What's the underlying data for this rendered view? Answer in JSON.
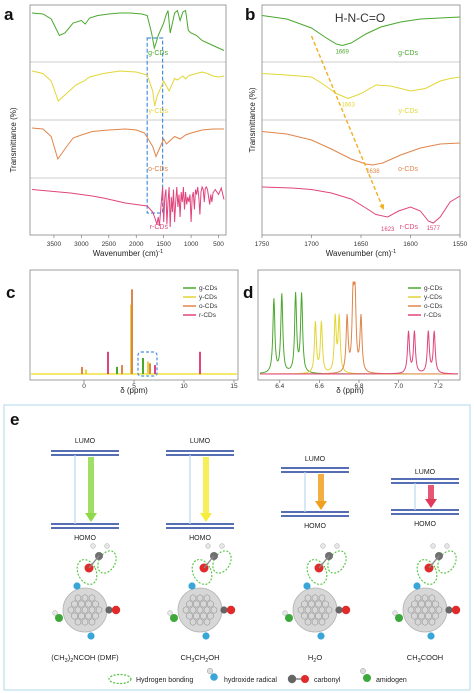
{
  "panel_labels": {
    "a": "a",
    "b": "b",
    "c": "c",
    "d": "d",
    "e": "e"
  },
  "colors": {
    "g": "#4aa82e",
    "y": "#e3d637",
    "o": "#e0854a",
    "r": "#e0457d",
    "highlight": "#4a90e2",
    "arrow": "#f0b020",
    "nmr_base": "#f2e23a"
  },
  "chart_data": [
    {
      "id": "a",
      "type": "line",
      "xlabel": "Wavenumber (cm)",
      "xlabel_sup": "-1",
      "ylabel": "Transmittance (%)",
      "xlim": [
        3900,
        400
      ],
      "xticks": [
        "3500",
        "3000",
        "2500",
        "2000",
        "1500",
        "1000",
        "500"
      ],
      "xtick_values": [
        3500,
        3000,
        2500,
        2000,
        1500,
        1000,
        500
      ],
      "highlight_range": [
        1800,
        1520
      ],
      "series": [
        {
          "name": "g-CDs",
          "color": "#4aa82e",
          "x": [
            3900,
            3700,
            3550,
            3400,
            3300,
            3150,
            3000,
            2930,
            2850,
            2700,
            2500,
            2300,
            2100,
            1900,
            1800,
            1720,
            1670,
            1640,
            1600,
            1560,
            1500,
            1460,
            1420,
            1380,
            1330,
            1300,
            1250,
            1200,
            1150,
            1100,
            1050,
            1000,
            900,
            800,
            700,
            600,
            500,
            400
          ],
          "y": [
            0.9,
            0.88,
            0.78,
            0.45,
            0.5,
            0.7,
            0.75,
            0.68,
            0.8,
            0.85,
            0.88,
            0.9,
            0.9,
            0.88,
            0.85,
            0.5,
            0.2,
            0.3,
            0.45,
            0.55,
            0.7,
            0.85,
            0.95,
            0.5,
            0.75,
            0.9,
            0.95,
            0.75,
            0.92,
            0.95,
            0.55,
            0.5,
            0.45,
            0.35,
            0.3,
            0.25,
            0.2,
            0.15
          ]
        },
        {
          "name": "y-CDs",
          "color": "#e3d637",
          "x": [
            3900,
            3700,
            3550,
            3420,
            3300,
            3100,
            2950,
            2850,
            2600,
            2300,
            2000,
            1800,
            1700,
            1663,
            1620,
            1560,
            1500,
            1450,
            1400,
            1380,
            1300,
            1250,
            1150,
            1100,
            1050,
            1000,
            900,
            800,
            700,
            600,
            500,
            400
          ],
          "y": [
            0.9,
            0.85,
            0.7,
            0.3,
            0.42,
            0.62,
            0.7,
            0.78,
            0.85,
            0.9,
            0.88,
            0.82,
            0.5,
            0.2,
            0.4,
            0.55,
            0.7,
            0.6,
            0.5,
            0.55,
            0.75,
            0.72,
            0.8,
            0.74,
            0.8,
            0.82,
            0.85,
            0.88,
            0.85,
            0.8,
            0.78,
            0.8
          ]
        },
        {
          "name": "o-CDs",
          "color": "#e0854a",
          "x": [
            3900,
            3700,
            3550,
            3430,
            3300,
            3150,
            3000,
            2800,
            2500,
            2200,
            2000,
            1850,
            1700,
            1640,
            1600,
            1560,
            1500,
            1450,
            1400,
            1300,
            1200,
            1100,
            1000,
            800,
            600,
            400
          ],
          "y": [
            0.92,
            0.9,
            0.75,
            0.3,
            0.5,
            0.72,
            0.78,
            0.85,
            0.88,
            0.9,
            0.88,
            0.82,
            0.55,
            0.35,
            0.45,
            0.55,
            0.7,
            0.6,
            0.65,
            0.75,
            0.7,
            0.78,
            0.82,
            0.88,
            0.9,
            0.9
          ]
        },
        {
          "name": "r-CDs",
          "color": "#e0457d",
          "x": [
            3900,
            3600,
            3400,
            3200,
            3000,
            2800,
            2600,
            2400,
            2200,
            2000,
            1800,
            1700,
            1650,
            1623,
            1600,
            1577,
            1550,
            1520,
            1500,
            1480,
            1460,
            1440,
            1420,
            1400,
            1380,
            1360,
            1340,
            1320,
            1300,
            1280,
            1260,
            1240,
            1220,
            1200,
            1180,
            1160,
            1140,
            1120,
            1100,
            1080,
            1060,
            1040,
            1020,
            1000,
            980,
            960,
            940,
            920,
            900,
            880,
            860,
            840,
            820,
            800,
            780,
            760,
            740,
            720,
            700,
            680,
            660,
            640,
            620,
            600,
            560,
            500,
            450,
            400
          ],
          "y": [
            0.85,
            0.82,
            0.8,
            0.78,
            0.75,
            0.72,
            0.68,
            0.63,
            0.58,
            0.55,
            0.52,
            0.4,
            0.25,
            0.15,
            0.3,
            0.12,
            0.5,
            0.9,
            0.2,
            0.7,
            0.85,
            0.15,
            0.6,
            0.9,
            0.1,
            0.7,
            0.4,
            0.85,
            0.2,
            0.6,
            0.9,
            0.5,
            0.75,
            0.3,
            0.8,
            0.6,
            0.9,
            0.45,
            0.8,
            0.55,
            0.7,
            0.6,
            0.75,
            0.2,
            0.7,
            0.8,
            0.45,
            0.85,
            0.75,
            0.9,
            0.7,
            0.35,
            0.8,
            0.9,
            0.85,
            0.6,
            0.88,
            0.9,
            0.85,
            0.7,
            0.55,
            0.75,
            0.6,
            0.78,
            0.85,
            0.75,
            0.88,
            0.65
          ]
        }
      ]
    },
    {
      "id": "b",
      "type": "line",
      "xlabel": "Wavenumber (cm)",
      "xlabel_sup": "-1",
      "ylabel": "Transmittance (%)",
      "xlim": [
        1750,
        1550
      ],
      "xticks": [
        "1750",
        "1700",
        "1650",
        "1600",
        "1550"
      ],
      "xtick_values": [
        1750,
        1700,
        1650,
        1600,
        1550
      ],
      "annotation": "H-N-C=O",
      "series": [
        {
          "name": "g-CDs",
          "color": "#4aa82e",
          "peak_label": "1669",
          "peak_x": 1669,
          "x": [
            1750,
            1725,
            1700,
            1685,
            1675,
            1669,
            1660,
            1645,
            1630,
            1610,
            1590,
            1570,
            1550
          ],
          "y": [
            0.85,
            0.78,
            0.6,
            0.4,
            0.28,
            0.25,
            0.3,
            0.48,
            0.62,
            0.72,
            0.78,
            0.8,
            0.82
          ]
        },
        {
          "name": "y-CDs",
          "color": "#e3d637",
          "peak_label": "1663",
          "peak_x": 1663,
          "x": [
            1750,
            1725,
            1700,
            1690,
            1675,
            1663,
            1650,
            1635,
            1620,
            1600,
            1585,
            1570,
            1560,
            1550
          ],
          "y": [
            0.85,
            0.82,
            0.78,
            0.66,
            0.45,
            0.35,
            0.45,
            0.62,
            0.6,
            0.5,
            0.55,
            0.7,
            0.75,
            0.78
          ]
        },
        {
          "name": "o-CDs",
          "color": "#e0854a",
          "peak_label": "1638",
          "peak_x": 1638,
          "x": [
            1750,
            1725,
            1700,
            1680,
            1660,
            1645,
            1638,
            1628,
            1610,
            1590,
            1570,
            1550
          ],
          "y": [
            0.85,
            0.8,
            0.68,
            0.5,
            0.3,
            0.2,
            0.18,
            0.22,
            0.38,
            0.52,
            0.6,
            0.62
          ]
        },
        {
          "name": "r-CDs",
          "color": "#e0457d",
          "peak_label": "1623",
          "peak_x": 1623,
          "peak2_label": "1577",
          "peak2_x": 1577,
          "x": [
            1750,
            1720,
            1700,
            1680,
            1660,
            1645,
            1635,
            1623,
            1612,
            1600,
            1590,
            1582,
            1577,
            1570,
            1560,
            1550
          ],
          "y": [
            0.9,
            0.88,
            0.85,
            0.78,
            0.66,
            0.48,
            0.35,
            0.3,
            0.42,
            0.5,
            0.42,
            0.22,
            0.18,
            0.3,
            0.6,
            0.72
          ]
        }
      ]
    },
    {
      "id": "c",
      "type": "bar",
      "xlabel": "δ (ppm)",
      "xlim": [
        -5,
        15
      ],
      "xticks": [
        "0",
        "5",
        "10",
        "15"
      ],
      "xtick_values": [
        0,
        5,
        10,
        15
      ],
      "legend": [
        "g-CDs",
        "y-CDs",
        "o-CDs",
        "r-CDs"
      ],
      "highlight_range": [
        5.4,
        7.3
      ],
      "series": [
        {
          "name": "g-CDs",
          "color": "#4aa82e",
          "x": [
            3.3,
            5.9
          ],
          "heights": [
            0.08,
            0.18
          ]
        },
        {
          "name": "y-CDs",
          "color": "#e3d637",
          "x": [
            0.2,
            4.7,
            6.4
          ],
          "heights": [
            0.05,
            0.78,
            0.14
          ]
        },
        {
          "name": "o-CDs",
          "color": "#e0854a",
          "x": [
            -0.2,
            3.8,
            4.8,
            6.6
          ],
          "heights": [
            0.08,
            0.1,
            0.95,
            0.12
          ]
        },
        {
          "name": "r-CDs",
          "color": "#e0457d",
          "x": [
            2.4,
            7.1,
            11.6
          ],
          "heights": [
            0.25,
            0.1,
            0.25
          ]
        }
      ]
    },
    {
      "id": "d",
      "type": "line",
      "xlabel": "δ (ppm)",
      "xlim": [
        6.3,
        7.3
      ],
      "xticks": [
        "6.4",
        "6.6",
        "6.8",
        "7.0",
        "7.2"
      ],
      "xtick_values": [
        6.4,
        6.6,
        6.8,
        7.0,
        7.2
      ],
      "legend": [
        "g-CDs",
        "y-CDs",
        "o-CDs",
        "r-CDs"
      ],
      "series": [
        {
          "name": "g-CDs",
          "color": "#4aa82e",
          "peaks": [
            6.37,
            6.41,
            6.48,
            6.51
          ],
          "heights": [
            0.8,
            0.85,
            0.85,
            0.85
          ]
        },
        {
          "name": "y-CDs",
          "color": "#e3d637",
          "peaks": [
            6.58,
            6.61,
            6.68,
            6.7
          ],
          "heights": [
            0.55,
            0.55,
            0.6,
            0.6
          ]
        },
        {
          "name": "o-CDs",
          "color": "#e0854a",
          "peaks": [
            6.74,
            6.77,
            6.78,
            6.81
          ],
          "heights": [
            0.6,
            0.78,
            0.8,
            0.6
          ]
        },
        {
          "name": "r-CDs",
          "color": "#e0457d",
          "peaks": [
            7.05,
            7.08,
            7.15,
            7.18
          ],
          "heights": [
            0.45,
            0.45,
            0.45,
            0.45
          ]
        }
      ]
    }
  ],
  "panel_e": {
    "lumo": "LUMO",
    "homo": "HOMO",
    "solvents": [
      {
        "label": "(CH",
        "sub1": "3",
        "mid": ")",
        "sub2": "2",
        "rest": "NCOH (DMF)",
        "arrow_color": "#8fd84a"
      },
      {
        "label": "CH",
        "sub1": "3",
        "mid": "CH",
        "sub2": "2",
        "rest": "OH",
        "arrow_color": "#f5ec3c"
      },
      {
        "label": "H",
        "sub1": "2",
        "mid": "O",
        "sub2": "",
        "rest": "",
        "arrow_color": "#f0a020"
      },
      {
        "label": "CH",
        "sub1": "3",
        "mid": "COOH",
        "sub2": "",
        "rest": "",
        "arrow_color": "#e23a5a"
      }
    ],
    "legend": {
      "hbond": "Hydrogen bonding",
      "hydroxide": "hydroxide radical",
      "carbonyl": "carbonyl",
      "amidogen": "amidogen"
    }
  }
}
